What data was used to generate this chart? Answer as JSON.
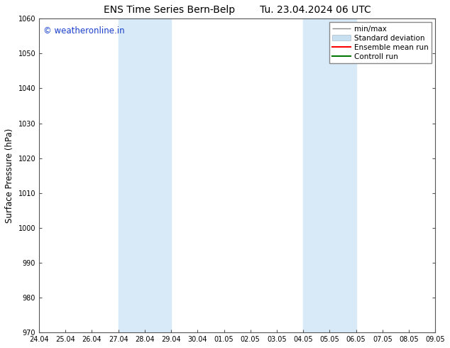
{
  "title_left": "ENS Time Series Bern-Belp",
  "title_right": "Tu. 23.04.2024 06 UTC",
  "ylabel": "Surface Pressure (hPa)",
  "ylim": [
    970,
    1060
  ],
  "yticks": [
    970,
    980,
    990,
    1000,
    1010,
    1020,
    1030,
    1040,
    1050,
    1060
  ],
  "x_tick_labels": [
    "24.04",
    "25.04",
    "26.04",
    "27.04",
    "28.04",
    "29.04",
    "30.04",
    "01.05",
    "02.05",
    "03.05",
    "04.05",
    "05.05",
    "06.05",
    "07.05",
    "08.05",
    "09.05"
  ],
  "x_tick_positions": [
    0,
    1,
    2,
    3,
    4,
    5,
    6,
    7,
    8,
    9,
    10,
    11,
    12,
    13,
    14,
    15
  ],
  "shaded_bands": [
    {
      "x_start": 3,
      "x_end": 5,
      "color": "#d8eaf8"
    },
    {
      "x_start": 10,
      "x_end": 12,
      "color": "#d8eaf8"
    }
  ],
  "watermark_text": "© weatheronline.in",
  "watermark_color": "#1a3fcc",
  "watermark_fontsize": 8.5,
  "legend_labels": [
    "min/max",
    "Standard deviation",
    "Ensemble mean run",
    "Controll run"
  ],
  "background_color": "#ffffff",
  "plot_bg_color": "#ffffff",
  "title_fontsize": 10,
  "tick_fontsize": 7,
  "ylabel_fontsize": 8.5
}
